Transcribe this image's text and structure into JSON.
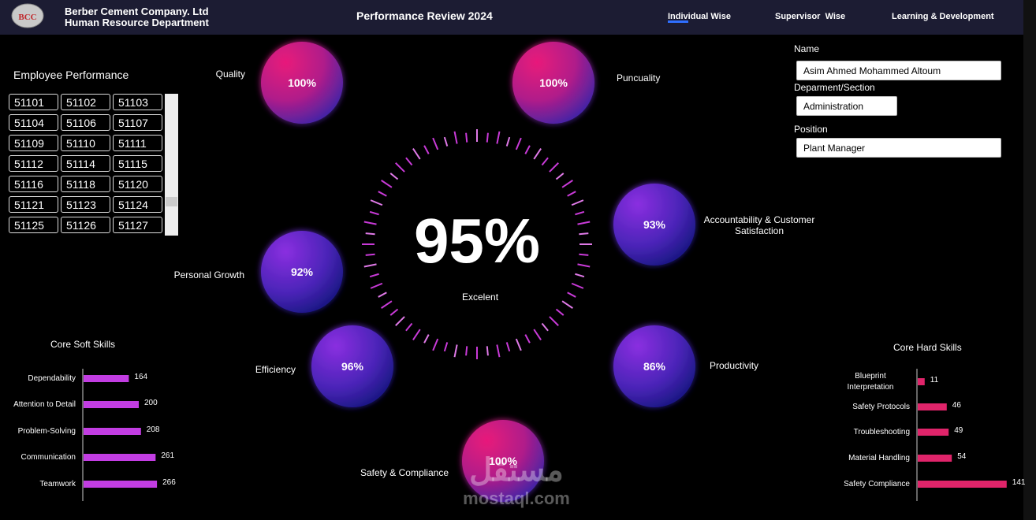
{
  "header": {
    "logo": "BCC",
    "company": "Berber Cement Company. Ltd",
    "department": "Human Resource Department",
    "title": "Performance Review 2024",
    "nav": [
      "Individual Wise",
      "Supervisor  Wise",
      "Learning & Development"
    ]
  },
  "employee_list": {
    "title": "Employee Performance",
    "ids": [
      "51101",
      "51102",
      "51103",
      "51104",
      "51106",
      "51107",
      "51109",
      "51110",
      "51111",
      "51112",
      "51114",
      "51115",
      "51116",
      "51118",
      "51120",
      "51121",
      "51123",
      "51124",
      "51125",
      "51126",
      "51127"
    ]
  },
  "overall": {
    "score": "95%",
    "rating": "Excelent"
  },
  "metrics": [
    {
      "label": "Quality",
      "score": "100%"
    },
    {
      "label": "Puncuality",
      "score": "100%"
    },
    {
      "label": "Accountability & Customer Satisfaction",
      "score": "93%"
    },
    {
      "label": "Personal Growth",
      "score": "92%"
    },
    {
      "label": "Efficiency",
      "score": "96%"
    },
    {
      "label": "Productivity",
      "score": "86%"
    },
    {
      "label": "Safety & Compliance",
      "score": "100%"
    }
  ],
  "details": {
    "name_label": "Name",
    "name": "Asim Ahmed Mohammed Altoum",
    "section_label": "Deparment/Section",
    "section": "Administration",
    "position_label": "Position",
    "position": "Plant Manager"
  },
  "soft_skills": {
    "title": "Core Soft Skills",
    "color": "#c23de2",
    "categories": [
      "Dependability",
      "Attention to Detail",
      "Problem-Solving",
      "Communication",
      "Teamwork"
    ],
    "values": [
      164,
      200,
      208,
      261,
      266
    ]
  },
  "hard_skills": {
    "title": "Core Hard Skills",
    "color": "#e0246a",
    "categories": [
      "Blueprint Interpretation",
      "Safety Protocols",
      "Troubleshooting",
      "Material Handling",
      "Safety Compliance"
    ],
    "values": [
      11,
      46,
      49,
      54,
      141
    ]
  },
  "watermark": {
    "arabic": "مستقل",
    "latin": "mostaql.com"
  }
}
